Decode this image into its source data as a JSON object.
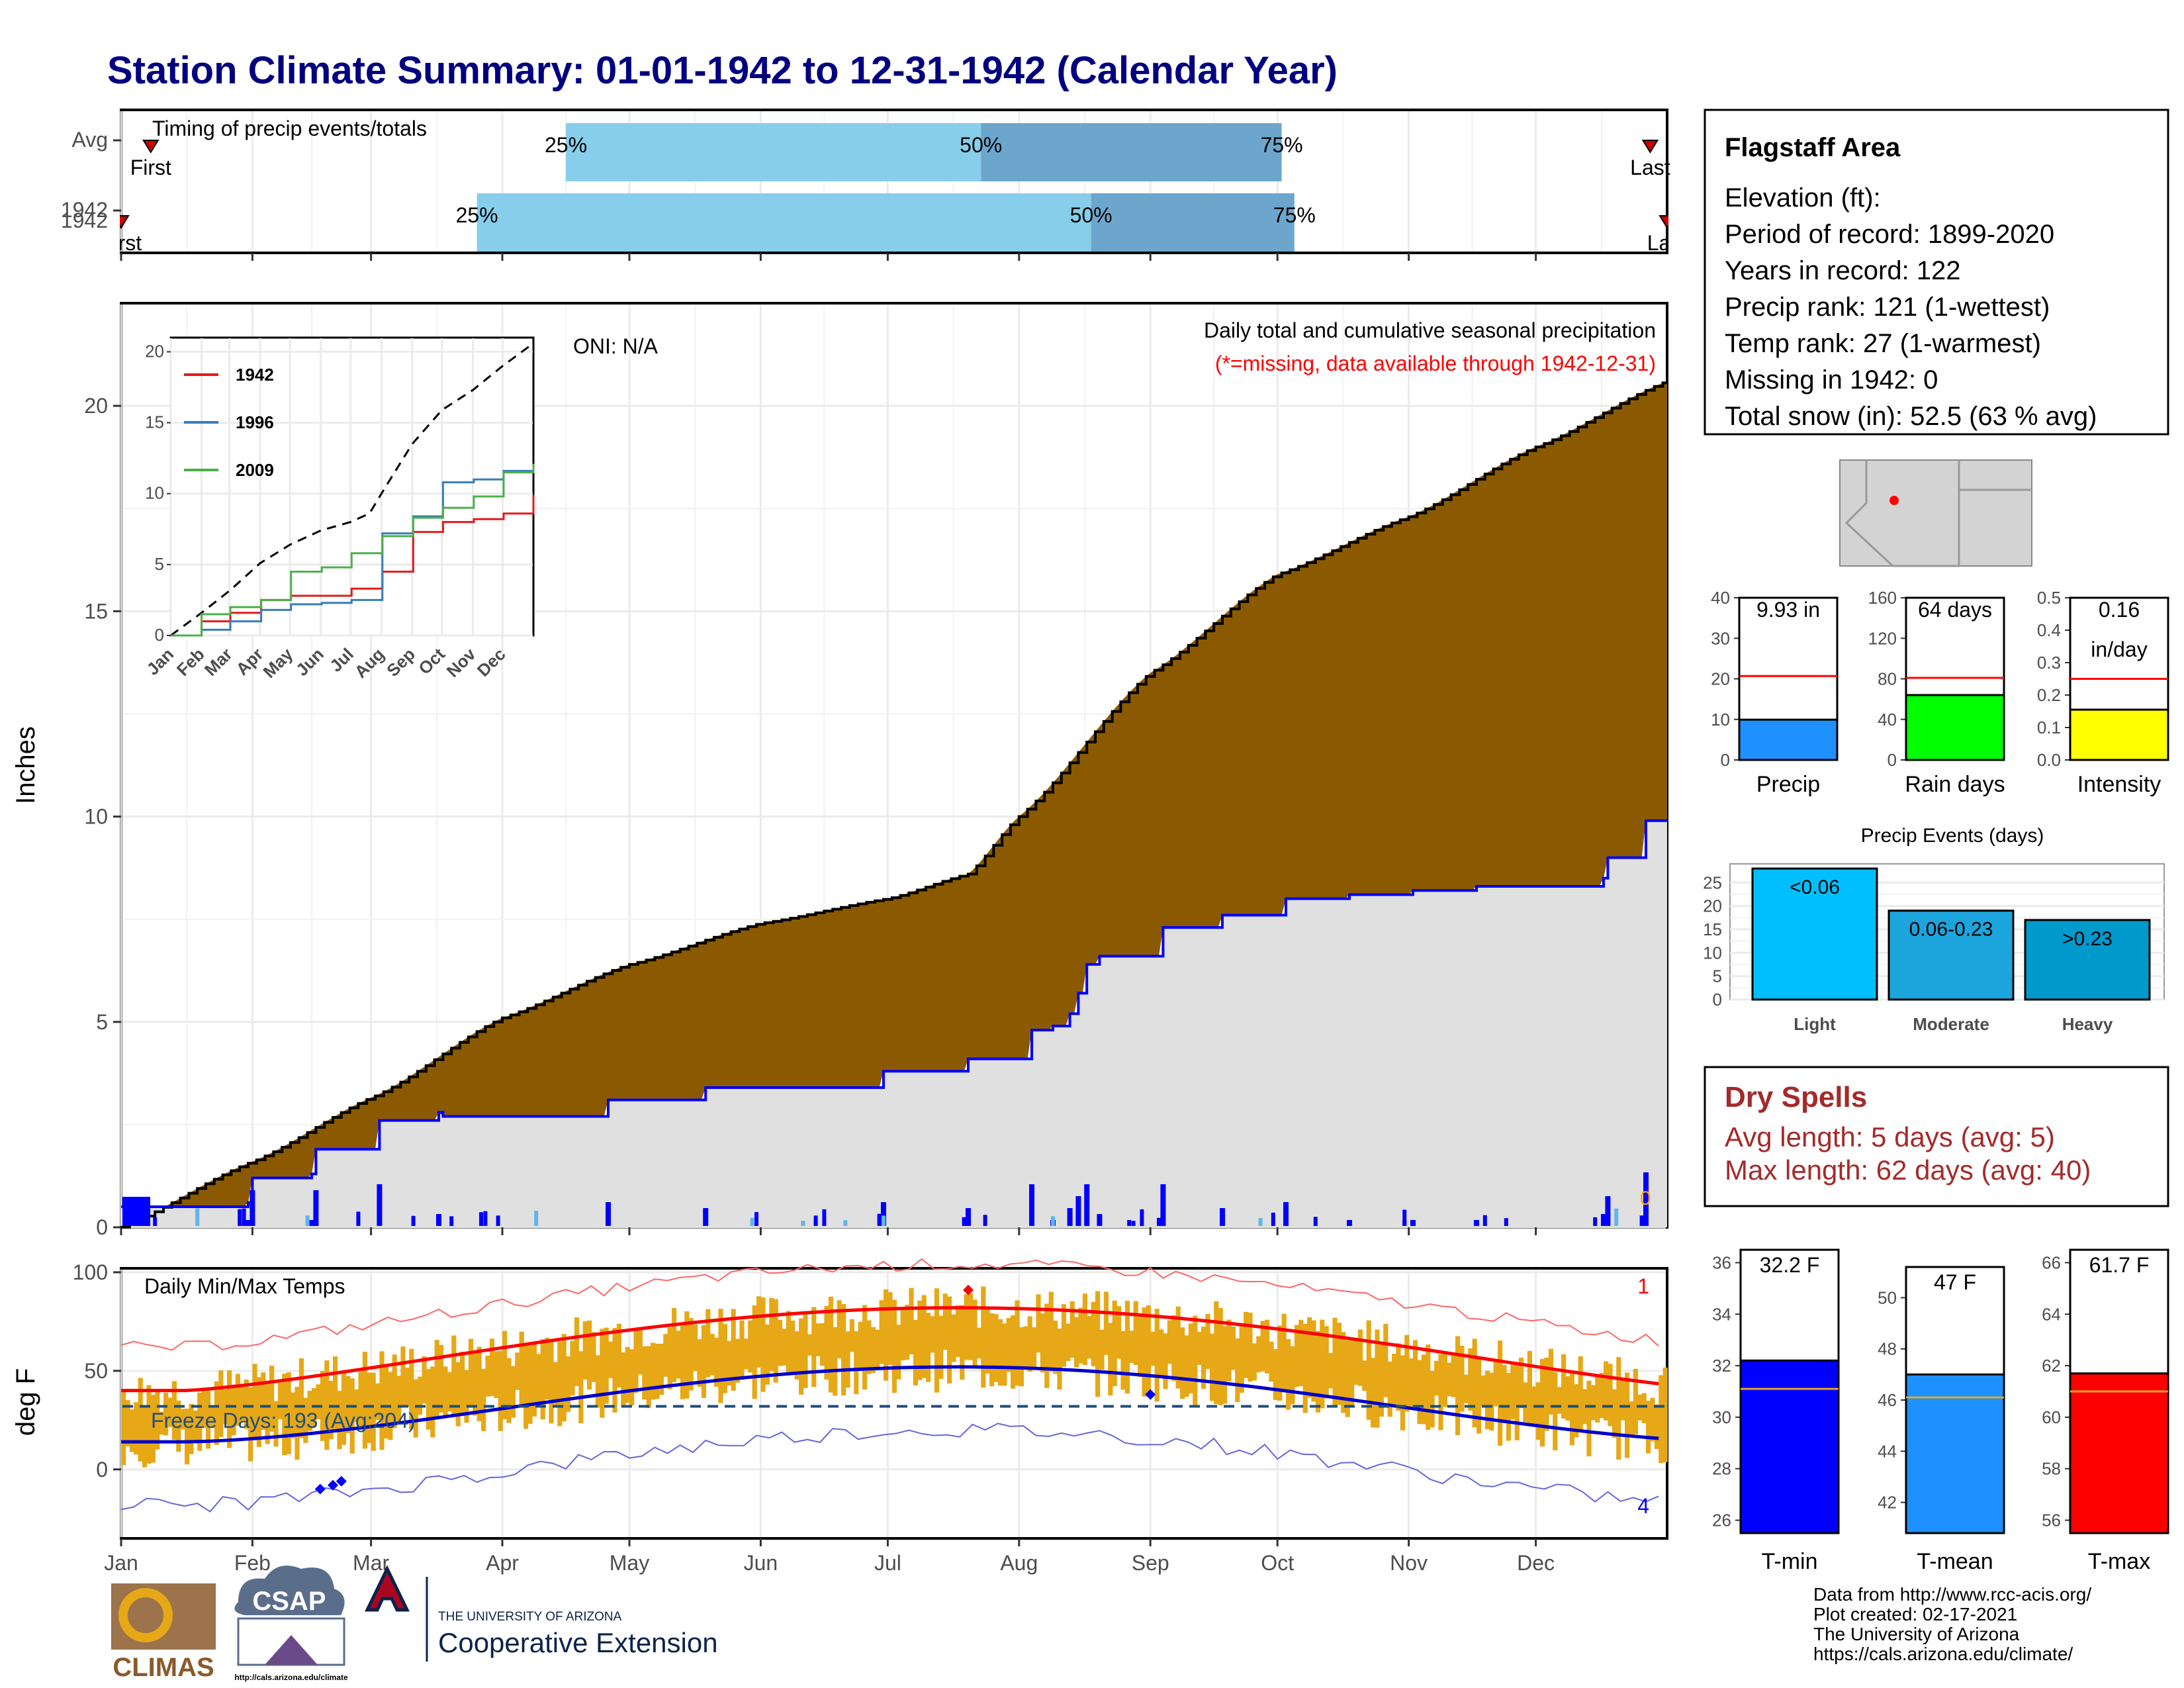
{
  "title": "Station Climate Summary: 01-01-1942 to 12-31-1942 (Calendar Year)",
  "months": [
    "Jan",
    "Feb",
    "Mar",
    "Apr",
    "May",
    "Jun",
    "Jul",
    "Aug",
    "Sep",
    "Oct",
    "Nov",
    "Dec"
  ],
  "timing": {
    "label": "Timing of precip events/totals",
    "rows": [
      {
        "name": "Avg",
        "first_label": "First",
        "last_label": "Last",
        "p25_label": "25%",
        "p50_label": "50%",
        "p75_label": "75%",
        "first_day": 7,
        "p25_day": 105,
        "p50_day": 203,
        "p75_day": 274,
        "last_day": 361
      },
      {
        "name": "1942",
        "first_label": "First",
        "last_label": "Last",
        "p25_label": "25%",
        "p50_label": "50%",
        "p75_label": "75%",
        "first_day": 0,
        "p25_day": 84,
        "p50_day": 229,
        "p75_day": 277,
        "last_day": 365
      }
    ],
    "colors": {
      "q1": "#87ceeb",
      "q2": "#6ca6cd",
      "marker": "#cc0000"
    }
  },
  "precip_panel": {
    "annotation_oni": "ONI: N/A",
    "annotation_title": "Daily total and cumulative seasonal precipitation",
    "annotation_missing": "(*=missing, data available through 1942-12-31)",
    "annotation_zero": "0",
    "ylabel": "Inches",
    "yticks": [
      0,
      5,
      10,
      15,
      20
    ],
    "ylim": [
      0,
      22.5
    ],
    "colors": {
      "avg_fill": "#8b5a00",
      "obs_fill": "#e0e0e0",
      "obs_line": "#0000ff",
      "daily_bar": "#0000ff"
    }
  },
  "inset": {
    "yticks": [
      0,
      5,
      10,
      15,
      20
    ],
    "legend": [
      "1942",
      "1996",
      "2009"
    ],
    "colors": {
      "1942": "#e41a1c",
      "1996": "#377eb8",
      "2009": "#4daf4a",
      "avg": "#000000"
    }
  },
  "temp_panel": {
    "annotation_title": "Daily Min/Max Temps",
    "freeze_label": "Freeze Days: 193 (Avg:204)",
    "count_top": "1",
    "count_bottom": "4",
    "ylabel": "deg F",
    "yticks": [
      0,
      50,
      100
    ],
    "ylim": [
      -35,
      102
    ],
    "freeze_line": 32,
    "colors": {
      "bar": "#e6a817",
      "max_avg": "#ff0000",
      "min_avg": "#0000cd",
      "max_rec": "#ff6666",
      "min_rec": "#6666dd",
      "freeze": "#1f4e79"
    }
  },
  "info": {
    "station": "Flagstaff Area",
    "lines": [
      "Elevation (ft):",
      "Period of record: 1899-2020",
      "Years in record: 122",
      "Precip rank: 121 (1-wettest)",
      "Temp rank: 27 (1-warmest)",
      "Missing in 1942: 0",
      "Total snow (in): 52.5 (63 % avg)"
    ]
  },
  "gauges": [
    {
      "name": "Precip",
      "label": "9.93 in",
      "value": 9.93,
      "avg": 20.7,
      "ylim": [
        0,
        40
      ],
      "yticks": [
        "0",
        "10",
        "20",
        "30",
        "40"
      ],
      "color": "#1e90ff"
    },
    {
      "name": "Rain days",
      "label": "64 days",
      "value": 64,
      "avg": 81,
      "ylim": [
        0,
        160
      ],
      "yticks": [
        "0",
        "40",
        "80",
        "120",
        "160"
      ],
      "color": "#00ff00"
    },
    {
      "name": "Intensity",
      "label": "0.16",
      "label2": "in/day",
      "value": 0.155,
      "avg": 0.25,
      "ylim": [
        0,
        0.5
      ],
      "yticks": [
        "0.0",
        "0.1",
        "0.2",
        "0.3",
        "0.4",
        "0.5"
      ],
      "color": "#ffff00"
    }
  ],
  "events": {
    "title": "Precip Events (days)",
    "yticks": [
      "0",
      "5",
      "10",
      "15",
      "20",
      "25"
    ],
    "ylim": [
      0,
      29
    ],
    "bars": [
      {
        "name": "Light",
        "label": "<0.06",
        "value": 28,
        "color": "#00bfff"
      },
      {
        "name": "Moderate",
        "label": "0.06-0.23",
        "value": 19,
        "color": "#1ca5dc"
      },
      {
        "name": "Heavy",
        "label": ">0.23",
        "value": 17,
        "color": "#0099cc"
      }
    ]
  },
  "dry_spells": {
    "title": "Dry Spells",
    "avg_line": "Avg length: 5 days (avg: 5)",
    "max_line": "Max length: 62 days (avg: 40)",
    "color": "#a52a2a"
  },
  "temp_gauges": [
    {
      "name": "T-min",
      "label": "32.2 F",
      "value": 32.2,
      "avg": 31.1,
      "ylim": [
        25.5,
        36.5
      ],
      "yticks": [
        "26",
        "28",
        "30",
        "32",
        "34",
        "36"
      ],
      "tickvals": [
        26,
        28,
        30,
        32,
        34,
        36
      ],
      "color": "#0000ff"
    },
    {
      "name": "T-mean",
      "label": "47 F",
      "value": 47.0,
      "avg": 46.1,
      "ylim": [
        40.8,
        51.2
      ],
      "yticks": [
        "42",
        "44",
        "46",
        "48",
        "50"
      ],
      "tickvals": [
        42,
        44,
        46,
        48,
        50
      ],
      "color": "#1e90ff"
    },
    {
      "name": "T-max",
      "label": "61.7 F",
      "value": 61.7,
      "avg": 61.0,
      "ylim": [
        55.5,
        66.5
      ],
      "yticks": [
        "56",
        "58",
        "60",
        "62",
        "64",
        "66"
      ],
      "tickvals": [
        56,
        58,
        60,
        62,
        64,
        66
      ],
      "color": "#ff0000"
    }
  ],
  "footer": {
    "lines": [
      "Data from http://www.rcc-acis.org/",
      "Plot created: 02-17-2021",
      "The University of Arizona",
      "https://cals.arizona.edu/climate/"
    ],
    "logo_climas": "CLIMAS",
    "logo_csap": "CSAP",
    "logo_csap_url": "http://cals.arizona.edu/climate",
    "logo_ua_small": "THE UNIVERSITY OF ARIZONA",
    "logo_ua_big": "Cooperative Extension"
  },
  "chart_data": [
    {
      "type": "line",
      "title": "Daily total and cumulative seasonal precipitation",
      "ylabel": "Inches",
      "ylim": [
        0,
        22.5
      ],
      "x_unit": "day of year",
      "series": [
        {
          "name": "1942",
          "x": [
            0,
            30,
            31,
            45,
            46,
            60,
            61,
            75,
            76,
            110,
            115,
            137,
            138,
            165,
            180,
            200,
            210,
            215,
            220,
            224,
            226,
            228,
            231,
            245,
            246,
            259,
            260,
            272,
            275,
            290,
            305,
            320,
            350,
            351,
            360,
            365
          ],
          "values": [
            0.5,
            0.6,
            1.2,
            1.3,
            1.9,
            1.9,
            2.6,
            2.8,
            2.7,
            2.7,
            3.1,
            3.1,
            3.4,
            3.4,
            3.8,
            4.1,
            4.1,
            4.8,
            4.9,
            5.2,
            5.7,
            6.4,
            6.6,
            6.6,
            7.3,
            7.3,
            7.6,
            7.6,
            8.0,
            8.1,
            8.2,
            8.3,
            8.5,
            9.0,
            9.9,
            9.9
          ]
        }
      ]
    },
    {
      "type": "line",
      "title": "",
      "xlabel": "",
      "ylim": [
        0,
        20
      ],
      "x_categories": [
        "Jan",
        "Feb",
        "Mar",
        "Apr",
        "May",
        "Jun",
        "Jul",
        "Aug",
        "Sep",
        "Oct",
        "Nov",
        "Dec"
      ],
      "series": [
        {
          "name": "1942",
          "x": [
            0,
            31,
            60,
            91,
            121,
            152,
            182,
            213,
            244,
            274,
            305,
            335,
            365
          ],
          "values": [
            0,
            1.0,
            1.6,
            2.5,
            2.8,
            2.8,
            3.3,
            4.5,
            7.3,
            8.0,
            8.2,
            8.6,
            9.9
          ]
        },
        {
          "name": "1996",
          "x": [
            0,
            31,
            60,
            91,
            121,
            152,
            182,
            213,
            244,
            274,
            305,
            335,
            365
          ],
          "values": [
            0,
            0.4,
            1.0,
            1.8,
            2.2,
            2.3,
            2.5,
            7.2,
            8.4,
            10.8,
            11.0,
            11.6,
            12.1
          ]
        },
        {
          "name": "2009",
          "x": [
            0,
            31,
            60,
            91,
            121,
            152,
            182,
            213,
            244,
            274,
            305,
            335,
            365
          ],
          "values": [
            0,
            1.5,
            2.0,
            2.5,
            4.5,
            4.8,
            5.8,
            7.0,
            8.3,
            9.0,
            9.8,
            11.5,
            12.1
          ]
        }
      ]
    },
    {
      "type": "bar",
      "title": "",
      "categories": [
        "Precip",
        "Rain days",
        "Intensity"
      ],
      "values": [
        9.93,
        64,
        0.16
      ]
    },
    {
      "type": "bar",
      "title": "Precip Events (days)",
      "categories": [
        "Light",
        "Moderate",
        "Heavy"
      ],
      "values": [
        28,
        19,
        17
      ]
    },
    {
      "type": "bar",
      "title": "",
      "categories": [
        "T-min",
        "T-mean",
        "T-max"
      ],
      "values": [
        32.2,
        47.0,
        61.7
      ]
    }
  ]
}
